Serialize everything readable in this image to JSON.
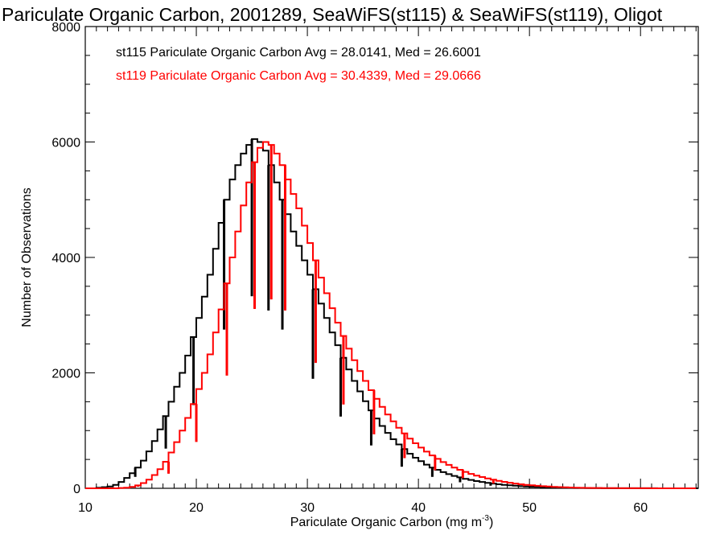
{
  "chart_data": {
    "type": "line",
    "style": "step-histogram",
    "title": "Pariculate Organic Carbon, 2001289, SeaWiFS(st115) & SeaWiFS(st119), Oligot",
    "xlabel": "Pariculate Organic Carbon (mg m",
    "xlabel_sup": "-3",
    "xlabel_end": ")",
    "ylabel": "Number of Observations",
    "xlim": [
      10,
      65.2
    ],
    "ylim": [
      0,
      8000
    ],
    "x_ticks": [
      10,
      20,
      30,
      40,
      50,
      60
    ],
    "x_tick_labels": [
      "10",
      "20",
      "30",
      "40",
      "50",
      "60"
    ],
    "y_ticks": [
      0,
      2000,
      4000,
      6000,
      8000
    ],
    "y_tick_labels": [
      "0",
      "2000",
      "4000",
      "6000",
      "8000"
    ],
    "grid": false,
    "legend_position": "top-left",
    "x_start": 10,
    "bin_width": 0.5,
    "series": [
      {
        "name": "st115 Pariculate Organic Carbon Avg = 28.0141, Med = 26.6001",
        "color": "#000000",
        "values": [
          0,
          0,
          10,
          20,
          30,
          60,
          110,
          180,
          260,
          360,
          480,
          640,
          820,
          1020,
          1250,
          1500,
          1760,
          2000,
          2300,
          2620,
          2950,
          3320,
          3700,
          4150,
          4600,
          5000,
          5350,
          5600,
          5800,
          5950,
          6050,
          6000,
          5850,
          5600,
          5300,
          5000,
          4750,
          4450,
          4200,
          3950,
          3700,
          3450,
          3200,
          2950,
          2700,
          2480,
          2260,
          2060,
          1860,
          1680,
          1510,
          1350,
          1210,
          1080,
          960,
          850,
          760,
          680,
          600,
          530,
          470,
          410,
          360,
          320,
          280,
          245,
          215,
          190,
          165,
          145,
          125,
          110,
          95,
          82,
          70,
          60,
          52,
          45,
          38,
          32,
          27,
          23,
          19,
          16,
          13,
          11,
          9,
          7,
          6,
          5,
          4,
          3,
          3,
          2,
          2,
          1,
          1,
          1,
          1,
          1,
          1,
          1,
          1,
          0,
          0,
          0,
          0,
          0,
          0,
          0,
          0,
          0,
          0,
          0,
          0
        ]
      },
      {
        "name": "st119 Pariculate Organic Carbon Avg = 30.4339, Med = 29.0666",
        "color": "#ff0000",
        "values": [
          0,
          0,
          0,
          0,
          0,
          0,
          5,
          10,
          25,
          50,
          90,
          150,
          230,
          330,
          460,
          620,
          800,
          1000,
          1220,
          1460,
          1720,
          2000,
          2320,
          2700,
          3100,
          3550,
          4000,
          4450,
          4900,
          5300,
          5650,
          5900,
          6000,
          5950,
          5800,
          5600,
          5350,
          5100,
          4850,
          4550,
          4250,
          3950,
          3650,
          3380,
          3120,
          2870,
          2640,
          2420,
          2220,
          2030,
          1860,
          1700,
          1550,
          1410,
          1280,
          1160,
          1050,
          950,
          860,
          780,
          705,
          635,
          570,
          510,
          455,
          405,
          360,
          320,
          285,
          250,
          220,
          195,
          170,
          150,
          130,
          112,
          96,
          82,
          70,
          60,
          51,
          43,
          36,
          30,
          25,
          21,
          17,
          14,
          11,
          9,
          7,
          6,
          5,
          4,
          3,
          3,
          2,
          2,
          1,
          1,
          1,
          1,
          0,
          0,
          0,
          0,
          0,
          0,
          0,
          0
        ]
      }
    ],
    "dip_x_positions": [
      14.5,
      17.25,
      19.75,
      22.5,
      25,
      26.5,
      27.75,
      30.5,
      33,
      35.75,
      38.5,
      41.25,
      43.75,
      46.5,
      49.25,
      52
    ]
  }
}
